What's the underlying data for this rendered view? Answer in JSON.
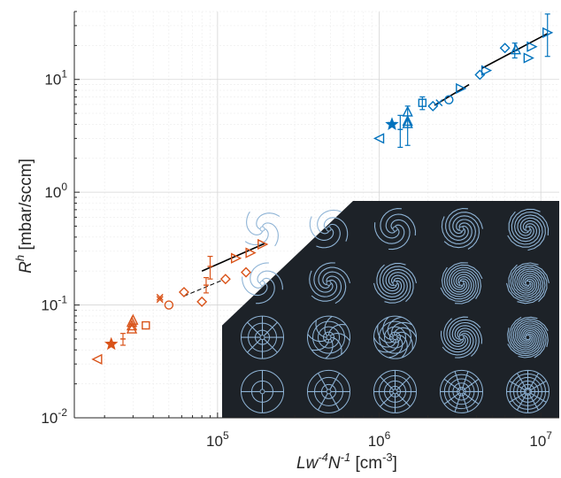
{
  "chart_data": {
    "type": "scatter",
    "xscale": "log",
    "yscale": "log",
    "xlim": [
      13000,
      13000000
    ],
    "ylim": [
      0.01,
      40
    ],
    "grid": true,
    "xlabel": "Lw-4N-1 [cm-3]",
    "ylabel": "Rh [mbar/sccm]",
    "xlabel_parts": {
      "base": "Lw",
      "sup1": "-4",
      "mid": "N",
      "sup2": "-1",
      "unit_base": " [cm",
      "unit_sup": "-3",
      "unit_close": "]"
    },
    "ylabel_parts": {
      "base": "R",
      "sup": "h",
      "unit": " [mbar/sccm]"
    },
    "x_ticks": [
      {
        "value": 100000,
        "base": "10",
        "exp": "5"
      },
      {
        "value": 1000000,
        "base": "10",
        "exp": "6"
      },
      {
        "value": 10000000,
        "base": "10",
        "exp": "7"
      }
    ],
    "y_ticks": [
      {
        "value": 0.01,
        "base": "10",
        "exp": "-2"
      },
      {
        "value": 0.1,
        "base": "10",
        "exp": "-1"
      },
      {
        "value": 1,
        "base": "10",
        "exp": "0"
      },
      {
        "value": 10,
        "base": "10",
        "exp": "1"
      }
    ],
    "colors": {
      "orange": "#d95319",
      "blue": "#0072bd",
      "fit": "#000000",
      "inset_bg": "#1d2228",
      "inset_line": "#8fb4d6"
    },
    "series": [
      {
        "color": "orange",
        "points": [
          {
            "x": 18000,
            "y": 0.033,
            "marker": "triangle-left"
          },
          {
            "x": 22000,
            "y": 0.045,
            "marker": "star"
          },
          {
            "x": 26000,
            "y": 0.05,
            "marker": "errorbar",
            "ylo": 0.044,
            "yhi": 0.056
          },
          {
            "x": 29500,
            "y": 0.062,
            "marker": "triangle-up"
          },
          {
            "x": 29500,
            "y": 0.066,
            "marker": "triangle-up"
          },
          {
            "x": 29500,
            "y": 0.071,
            "marker": "triangle-up"
          },
          {
            "x": 30000,
            "y": 0.074,
            "marker": "triangle-up"
          },
          {
            "x": 36000,
            "y": 0.066,
            "marker": "square"
          },
          {
            "x": 44000,
            "y": 0.117,
            "marker": "x"
          },
          {
            "x": 44000,
            "y": 0.112,
            "marker": "x"
          },
          {
            "x": 50000,
            "y": 0.1,
            "marker": "circle"
          },
          {
            "x": 62000,
            "y": 0.13,
            "marker": "diamond"
          },
          {
            "x": 80000,
            "y": 0.107,
            "marker": "diamond"
          },
          {
            "x": 85000,
            "y": 0.15,
            "marker": "errorbar",
            "ylo": 0.128,
            "yhi": 0.175
          },
          {
            "x": 90000,
            "y": 0.22,
            "marker": "errorbar",
            "ylo": 0.17,
            "yhi": 0.27
          },
          {
            "x": 112000,
            "y": 0.17,
            "marker": "diamond"
          },
          {
            "x": 130000,
            "y": 0.26,
            "marker": "triangle-right"
          },
          {
            "x": 150000,
            "y": 0.195,
            "marker": "diamond"
          },
          {
            "x": 160000,
            "y": 0.29,
            "marker": "triangle-right"
          },
          {
            "x": 190000,
            "y": 0.345,
            "marker": "triangle-right"
          }
        ],
        "fits": [
          {
            "x": [
              62000,
              106000
            ],
            "y": [
              0.12,
              0.165
            ],
            "style": "dashed"
          },
          {
            "x": [
              80000,
              195000
            ],
            "y": [
              0.2,
              0.35
            ],
            "style": "solid"
          }
        ]
      },
      {
        "color": "blue",
        "points": [
          {
            "x": 1000000,
            "y": 3.0,
            "marker": "triangle-left"
          },
          {
            "x": 1200000,
            "y": 4.0,
            "marker": "star"
          },
          {
            "x": 1350000,
            "y": 3.6,
            "marker": "errorbar",
            "ylo": 2.5,
            "yhi": 4.8
          },
          {
            "x": 1500000,
            "y": 5.2,
            "marker": "triangle-up"
          },
          {
            "x": 1500000,
            "y": 4.1,
            "marker": "triangle-up",
            "ylo": 2.6,
            "yhi": 5.8
          },
          {
            "x": 1500000,
            "y": 4.3,
            "marker": "triangle-up"
          },
          {
            "x": 1850000,
            "y": 6.2,
            "marker": "square",
            "ylo": 5.4,
            "yhi": 7.0
          },
          {
            "x": 2150000,
            "y": 5.8,
            "marker": "diamond"
          },
          {
            "x": 2350000,
            "y": 6.2,
            "marker": "x"
          },
          {
            "x": 2700000,
            "y": 6.6,
            "marker": "circle"
          },
          {
            "x": 3200000,
            "y": 8.3,
            "marker": "triangle-right"
          },
          {
            "x": 4200000,
            "y": 11.0,
            "marker": "diamond"
          },
          {
            "x": 4600000,
            "y": 12.0,
            "marker": "triangle-right"
          },
          {
            "x": 6000000,
            "y": 19.0,
            "marker": "diamond"
          },
          {
            "x": 6900000,
            "y": 18.0,
            "marker": "errorbar",
            "ylo": 15.5,
            "yhi": 21.0
          },
          {
            "x": 7000000,
            "y": 18.5,
            "marker": "triangle-up"
          },
          {
            "x": 8400000,
            "y": 15.5,
            "marker": "triangle-right"
          },
          {
            "x": 8800000,
            "y": 19.5,
            "marker": "triangle-right"
          },
          {
            "x": 11000000,
            "y": 26.0,
            "marker": "triangle-right",
            "ylo": 16.0,
            "yhi": 38.0
          }
        ],
        "fits": [
          {
            "x": [
              2200000,
              3600000
            ],
            "y": [
              5.9,
              9.0
            ],
            "style": "solid"
          },
          {
            "x": [
              4300000,
              11000000
            ],
            "y": [
              12.5,
              25.5
            ],
            "style": "solid"
          }
        ]
      }
    ],
    "inset": {
      "description_rows": 4,
      "description_cols": 5,
      "shapes": [
        {
          "kind": "spiral",
          "arms": 4,
          "curl": 0.8,
          "rings": 0
        },
        {
          "kind": "spiral",
          "arms": 4,
          "curl": 1.2,
          "rings": 0
        },
        {
          "kind": "spiral",
          "arms": 4,
          "curl": 1.6,
          "rings": 0
        },
        {
          "kind": "spiral",
          "arms": 5,
          "curl": 2.0,
          "rings": 0
        },
        {
          "kind": "spiral",
          "arms": 5,
          "curl": 2.5,
          "rings": 0
        },
        {
          "kind": "spiral",
          "arms": 4,
          "curl": 1.1,
          "rings": 0
        },
        {
          "kind": "spiral",
          "arms": 5,
          "curl": 1.6,
          "rings": 0
        },
        {
          "kind": "spiral",
          "arms": 6,
          "curl": 2.0,
          "rings": 0
        },
        {
          "kind": "spiral",
          "arms": 6,
          "curl": 2.6,
          "rings": 0
        },
        {
          "kind": "spiral",
          "arms": 6,
          "curl": 3.0,
          "rings": 0
        },
        {
          "kind": "web",
          "arms": 8,
          "curl": 0.0,
          "rings": 3
        },
        {
          "kind": "web",
          "arms": 8,
          "curl": 0.3,
          "rings": 4
        },
        {
          "kind": "web",
          "arms": 10,
          "curl": 0.6,
          "rings": 4
        },
        {
          "kind": "spiral",
          "arms": 8,
          "curl": 1.6,
          "rings": 0
        },
        {
          "kind": "spiral",
          "arms": 8,
          "curl": 2.4,
          "rings": 0
        },
        {
          "kind": "web",
          "arms": 4,
          "curl": 0.0,
          "rings": 2
        },
        {
          "kind": "web",
          "arms": 6,
          "curl": 0.0,
          "rings": 3
        },
        {
          "kind": "web",
          "arms": 8,
          "curl": 0.0,
          "rings": 4
        },
        {
          "kind": "web",
          "arms": 10,
          "curl": 0.0,
          "rings": 5
        },
        {
          "kind": "web",
          "arms": 12,
          "curl": 0.0,
          "rings": 6
        }
      ]
    }
  }
}
